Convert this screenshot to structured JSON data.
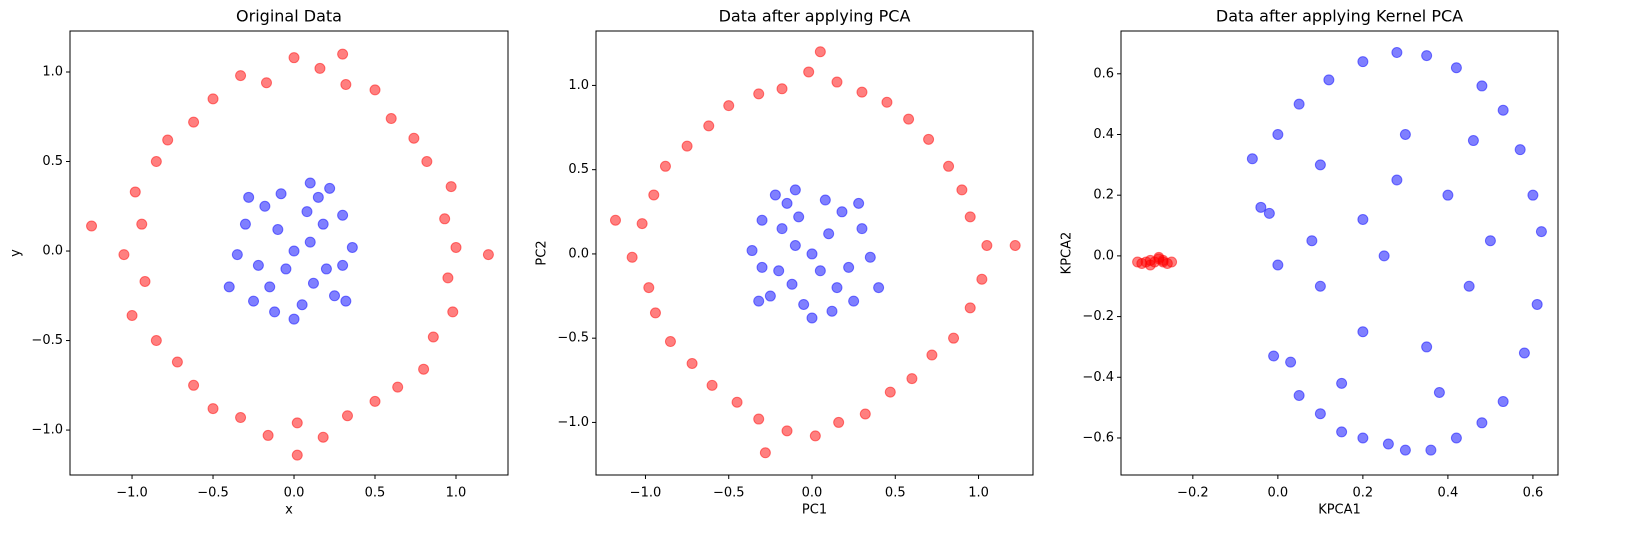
{
  "chart_data": [
    {
      "type": "scatter",
      "title": "Original Data",
      "xlabel": "x",
      "ylabel": "y",
      "xlim": [
        -1.383,
        1.321
      ],
      "ylim": [
        -1.251,
        1.229
      ],
      "xticks": [
        {
          "value": -1.0,
          "label": "−1.0"
        },
        {
          "value": -0.5,
          "label": "−0.5"
        },
        {
          "value": 0.0,
          "label": "0.0"
        },
        {
          "value": 0.5,
          "label": "0.5"
        },
        {
          "value": 1.0,
          "label": "1.0"
        }
      ],
      "yticks": [
        {
          "value": -1.0,
          "label": "−1.0"
        },
        {
          "value": -0.5,
          "label": "−0.5"
        },
        {
          "value": 0.0,
          "label": "0.0"
        },
        {
          "value": 0.5,
          "label": "0.5"
        },
        {
          "value": 1.0,
          "label": "1.0"
        }
      ],
      "series": [
        {
          "color": "red",
          "x": [
            1.0,
            0.93,
            0.97,
            0.82,
            0.74,
            0.6,
            0.5,
            0.32,
            0.16,
            0.0,
            -0.17,
            -0.33,
            -0.5,
            -0.62,
            -0.78,
            -0.85,
            -0.98,
            -0.94,
            -1.05,
            -0.92,
            -1.0,
            -0.85,
            -0.72,
            -0.62,
            -0.5,
            -0.33,
            -0.16,
            0.02,
            0.18,
            0.33,
            0.5,
            0.64,
            0.8,
            0.86,
            0.98,
            0.95,
            -1.25,
            1.2,
            0.02,
            0.3
          ],
          "values": [
            0.02,
            0.18,
            0.36,
            0.5,
            0.63,
            0.74,
            0.9,
            0.93,
            1.02,
            1.08,
            0.94,
            0.98,
            0.85,
            0.72,
            0.62,
            0.5,
            0.33,
            0.15,
            -0.02,
            -0.17,
            -0.36,
            -0.5,
            -0.62,
            -0.75,
            -0.88,
            -0.93,
            -1.03,
            -0.96,
            -1.04,
            -0.92,
            -0.84,
            -0.76,
            -0.66,
            -0.48,
            -0.34,
            -0.15,
            0.14,
            -0.02,
            -1.14,
            1.1
          ]
        },
        {
          "color": "blue",
          "x": [
            0.0,
            0.1,
            -0.1,
            0.2,
            -0.22,
            0.3,
            -0.3,
            0.05,
            -0.08,
            0.25,
            -0.25,
            0.15,
            -0.35,
            0.36,
            0.12,
            -0.15,
            -0.05,
            0.18,
            -0.18,
            0.3,
            -0.4,
            0.08,
            -0.28,
            0.22,
            0.0,
            -0.12,
            0.32,
            0.1
          ],
          "values": [
            0.0,
            0.05,
            0.12,
            -0.1,
            -0.08,
            0.2,
            0.15,
            -0.3,
            0.32,
            -0.25,
            -0.28,
            0.3,
            -0.02,
            0.02,
            -0.18,
            -0.2,
            -0.1,
            0.15,
            0.25,
            -0.08,
            -0.2,
            0.22,
            0.3,
            0.35,
            -0.38,
            -0.34,
            -0.28,
            0.38
          ]
        }
      ]
    },
    {
      "type": "scatter",
      "title": "Data after applying PCA",
      "xlabel": "PC1",
      "ylabel": "PC2",
      "xlim": [
        -1.297,
        1.327
      ],
      "ylim": [
        -1.312,
        1.323
      ],
      "xticks": [
        {
          "value": -1.0,
          "label": "−1.0"
        },
        {
          "value": -0.5,
          "label": "−0.5"
        },
        {
          "value": 0.0,
          "label": "0.0"
        },
        {
          "value": 0.5,
          "label": "0.5"
        },
        {
          "value": 1.0,
          "label": "1.0"
        }
      ],
      "yticks": [
        {
          "value": -1.0,
          "label": "−1.0"
        },
        {
          "value": -0.5,
          "label": "−0.5"
        },
        {
          "value": 0.0,
          "label": "0.0"
        },
        {
          "value": 0.5,
          "label": "0.5"
        },
        {
          "value": 1.0,
          "label": "1.0"
        }
      ],
      "series": [
        {
          "color": "red",
          "x": [
            1.05,
            0.95,
            0.9,
            0.82,
            0.7,
            0.58,
            0.45,
            0.3,
            0.15,
            -0.02,
            -0.18,
            -0.32,
            -0.5,
            -0.62,
            -0.75,
            -0.88,
            -0.95,
            -1.02,
            -1.08,
            -0.98,
            -0.94,
            -0.85,
            -0.72,
            -0.6,
            -0.45,
            -0.32,
            -0.15,
            0.02,
            0.16,
            0.32,
            0.47,
            0.6,
            0.72,
            0.85,
            0.95,
            1.02,
            1.22,
            -1.18,
            -0.28,
            0.05
          ],
          "values": [
            0.05,
            0.22,
            0.38,
            0.52,
            0.68,
            0.8,
            0.9,
            0.96,
            1.02,
            1.08,
            0.98,
            0.95,
            0.88,
            0.76,
            0.64,
            0.52,
            0.35,
            0.18,
            -0.02,
            -0.2,
            -0.35,
            -0.52,
            -0.65,
            -0.78,
            -0.88,
            -0.98,
            -1.05,
            -1.08,
            -1.0,
            -0.95,
            -0.82,
            -0.74,
            -0.6,
            -0.5,
            -0.32,
            -0.15,
            0.05,
            0.2,
            -1.18,
            1.2
          ]
        },
        {
          "color": "blue",
          "x": [
            0.0,
            -0.1,
            0.1,
            -0.2,
            0.22,
            -0.3,
            0.3,
            -0.05,
            0.08,
            -0.25,
            0.25,
            -0.15,
            0.35,
            -0.36,
            -0.12,
            0.15,
            0.05,
            -0.18,
            0.18,
            -0.3,
            0.4,
            -0.08,
            0.28,
            -0.22,
            0.0,
            0.12,
            -0.32,
            -0.1
          ],
          "values": [
            0.0,
            0.05,
            0.12,
            -0.1,
            -0.08,
            0.2,
            0.15,
            -0.3,
            0.32,
            -0.25,
            -0.28,
            0.3,
            -0.02,
            0.02,
            -0.18,
            -0.2,
            -0.1,
            0.15,
            0.25,
            -0.08,
            -0.2,
            0.22,
            0.3,
            0.35,
            -0.38,
            -0.34,
            -0.28,
            0.38
          ]
        }
      ]
    },
    {
      "type": "scatter",
      "title": "Data after applying Kernel PCA",
      "xlabel": "KPCA1",
      "ylabel": "KPCA2",
      "xlim": [
        -0.369,
        0.659
      ],
      "ylim": [
        -0.722,
        0.741
      ],
      "xticks": [
        {
          "value": -0.2,
          "label": "−0.2"
        },
        {
          "value": 0.0,
          "label": "0.0"
        },
        {
          "value": 0.2,
          "label": "0.2"
        },
        {
          "value": 0.4,
          "label": "0.4"
        },
        {
          "value": 0.6,
          "label": "0.6"
        }
      ],
      "yticks": [
        {
          "value": -0.6,
          "label": "−0.6"
        },
        {
          "value": -0.4,
          "label": "−0.4"
        },
        {
          "value": -0.2,
          "label": "−0.2"
        },
        {
          "value": 0.0,
          "label": "0.0"
        },
        {
          "value": 0.2,
          "label": "0.2"
        },
        {
          "value": 0.4,
          "label": "0.4"
        },
        {
          "value": 0.6,
          "label": "0.6"
        }
      ],
      "series": [
        {
          "color": "red",
          "x": [
            -0.33,
            -0.32,
            -0.31,
            -0.3,
            -0.29,
            -0.28,
            -0.27,
            -0.26,
            -0.25,
            -0.3,
            -0.28,
            -0.27
          ],
          "values": [
            -0.02,
            -0.025,
            -0.02,
            -0.015,
            -0.02,
            -0.01,
            -0.02,
            -0.025,
            -0.02,
            -0.03,
            -0.005,
            -0.015
          ]
        },
        {
          "color": "blue",
          "x": [
            -0.04,
            -0.02,
            0.0,
            -0.01,
            0.03,
            0.05,
            0.1,
            0.15,
            0.2,
            0.26,
            0.3,
            0.36,
            0.42,
            0.48,
            0.53,
            0.58,
            0.61,
            0.62,
            0.6,
            0.57,
            0.53,
            0.48,
            0.42,
            0.35,
            0.28,
            0.2,
            0.12,
            0.05,
            0.0,
            -0.06,
            0.1,
            0.2,
            0.3,
            0.4,
            0.45,
            0.35,
            0.2,
            0.1,
            0.25,
            0.15,
            0.5,
            0.38,
            0.08,
            0.28,
            0.46
          ],
          "values": [
            0.16,
            0.14,
            -0.03,
            -0.33,
            -0.35,
            -0.46,
            -0.52,
            -0.58,
            -0.6,
            -0.62,
            -0.64,
            -0.64,
            -0.6,
            -0.55,
            -0.48,
            -0.32,
            -0.16,
            0.08,
            0.2,
            0.35,
            0.48,
            0.56,
            0.62,
            0.66,
            0.67,
            0.64,
            0.58,
            0.5,
            0.4,
            0.32,
            0.3,
            0.12,
            0.4,
            0.2,
            -0.1,
            -0.3,
            -0.25,
            -0.1,
            0.0,
            -0.42,
            0.05,
            -0.45,
            0.05,
            0.25,
            0.38
          ]
        }
      ]
    }
  ]
}
